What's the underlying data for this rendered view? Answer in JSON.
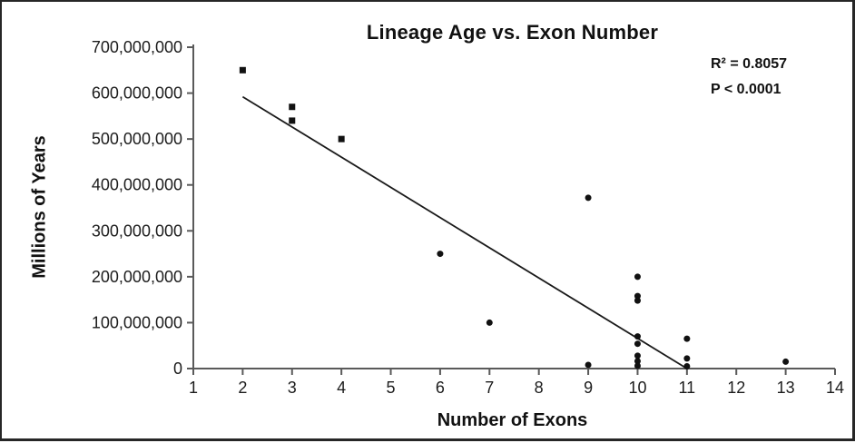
{
  "figure": {
    "title": "Lineage Age vs. Exon Number",
    "y_axis_title": "Millions of Years",
    "x_axis_title": "Number of Exons",
    "stats": {
      "r_squared": "R² = 0.8057",
      "p_value": "P < 0.0001"
    }
  },
  "chart_data": {
    "type": "scatter",
    "title": "Lineage Age vs. Exon Number",
    "xlabel": "Number of Exons",
    "ylabel": "Millions of Years",
    "xlim": [
      1,
      14
    ],
    "ylim": [
      0,
      700000000
    ],
    "grid": false,
    "legend": "none",
    "annotations": [
      "R² = 0.8057",
      "P < 0.0001"
    ],
    "x_ticks": [
      1,
      2,
      3,
      4,
      5,
      6,
      7,
      8,
      9,
      10,
      11,
      12,
      13,
      14
    ],
    "y_ticks": [
      {
        "value": 0,
        "label": "0"
      },
      {
        "value": 100000000,
        "label": "100,000,000"
      },
      {
        "value": 200000000,
        "label": "200,000,000"
      },
      {
        "value": 300000000,
        "label": "300,000,000"
      },
      {
        "value": 400000000,
        "label": "400,000,000"
      },
      {
        "value": 500000000,
        "label": "500,000,000"
      },
      {
        "value": 600000000,
        "label": "600,000,000"
      },
      {
        "value": 700000000,
        "label": "700,000,000"
      }
    ],
    "series": [
      {
        "name": "square-markers",
        "marker": "square",
        "points": [
          [
            2,
            650000000
          ],
          [
            3,
            570000000
          ],
          [
            3,
            540000000
          ],
          [
            4,
            500000000
          ]
        ]
      },
      {
        "name": "circle-markers",
        "marker": "circle",
        "points": [
          [
            6,
            250000000
          ],
          [
            7,
            100000000
          ],
          [
            9,
            372000000
          ],
          [
            9,
            8000000
          ],
          [
            10,
            200000000
          ],
          [
            10,
            158000000
          ],
          [
            10,
            148000000
          ],
          [
            10,
            70000000
          ],
          [
            10,
            54000000
          ],
          [
            10,
            28000000
          ],
          [
            10,
            16000000
          ],
          [
            10,
            6000000
          ],
          [
            11,
            65000000
          ],
          [
            11,
            22000000
          ],
          [
            11,
            5000000
          ],
          [
            13,
            15000000
          ]
        ]
      }
    ],
    "trendline": {
      "x1": 2.0,
      "y1": 592000000,
      "x2": 11.0,
      "y2": 0
    },
    "colors": {
      "marker": "#111111",
      "trendline": "#1a1a1a",
      "axis": "#5a5a5a",
      "text": "#1c1c1c"
    }
  }
}
